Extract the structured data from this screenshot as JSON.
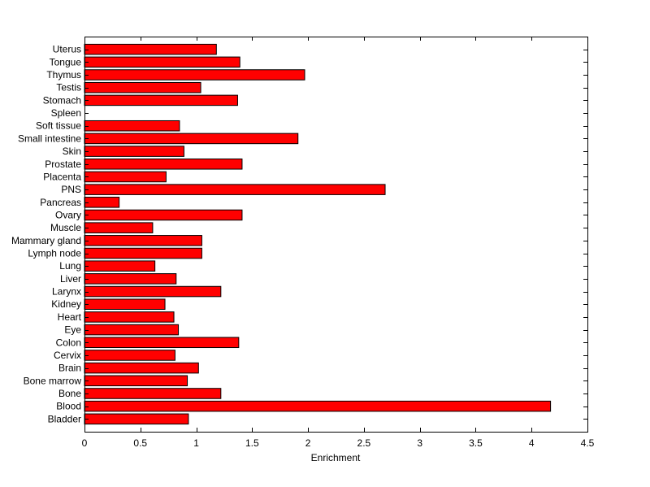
{
  "chart_data": {
    "type": "bar",
    "orientation": "horizontal",
    "title": "",
    "xlabel": "Enrichment",
    "ylabel": "",
    "xlim": [
      0,
      4.5
    ],
    "xticks": [
      "0",
      "0.5",
      "1",
      "1.5",
      "2",
      "2.5",
      "3",
      "3.5",
      "4",
      "4.5"
    ],
    "grid": false,
    "legend": "none",
    "bar_color": "#ff0000",
    "categories": [
      "Bladder",
      "Blood",
      "Bone",
      "Bone marrow",
      "Brain",
      "Cervix",
      "Colon",
      "Eye",
      "Heart",
      "Kidney",
      "Larynx",
      "Liver",
      "Lung",
      "Lymph node",
      "Mammary gland",
      "Muscle",
      "Ovary",
      "Pancreas",
      "PNS",
      "Placenta",
      "Prostate",
      "Skin",
      "Small intestine",
      "Soft tissue",
      "Spleen",
      "Stomach",
      "Testis",
      "Thymus",
      "Tongue",
      "Uterus"
    ],
    "values": [
      0.93,
      4.17,
      1.22,
      0.92,
      1.02,
      0.81,
      1.38,
      0.84,
      0.8,
      0.72,
      1.22,
      0.82,
      0.63,
      1.05,
      1.05,
      0.61,
      1.41,
      0.31,
      2.69,
      0.73,
      1.41,
      0.89,
      1.91,
      0.85,
      0.0,
      1.37,
      1.04,
      1.97,
      1.39,
      1.18
    ]
  }
}
